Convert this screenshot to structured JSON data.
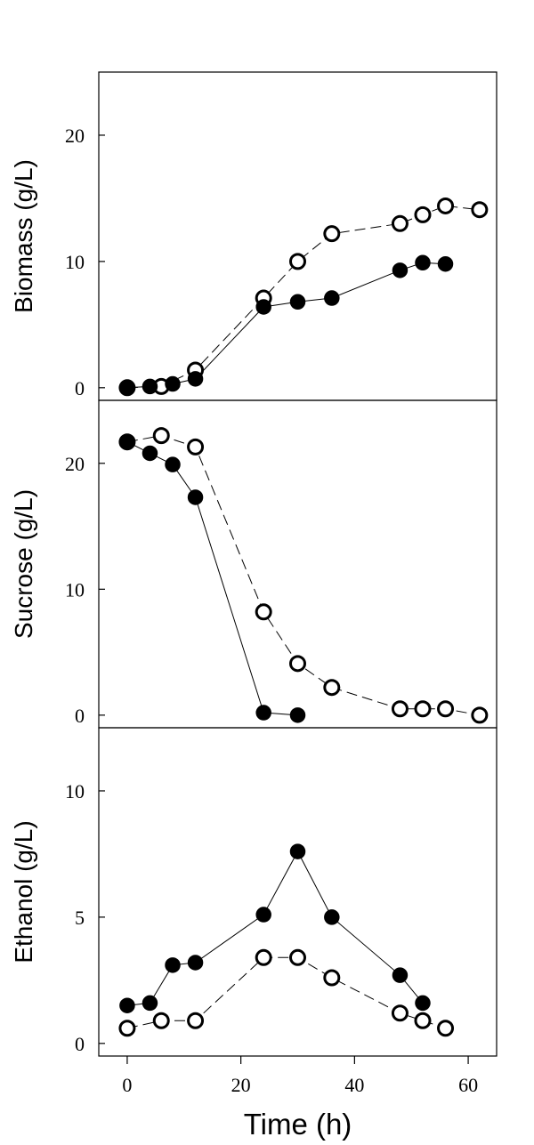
{
  "chart_data": [
    {
      "type": "line",
      "ylabel": "Biomass (g/L)",
      "ylim": [
        -1,
        25
      ],
      "yticks": [
        0,
        10,
        20
      ],
      "xlim": [
        -5,
        65
      ],
      "series": [
        {
          "marker": "filled",
          "x": [
            0,
            4,
            8,
            12,
            24,
            30,
            36,
            48,
            52,
            56
          ],
          "values": [
            0,
            0.1,
            0.3,
            0.7,
            6.4,
            6.8,
            7.1,
            9.3,
            9.9,
            9.8
          ]
        },
        {
          "marker": "open",
          "x": [
            0,
            6,
            12,
            24,
            30,
            36,
            48,
            52,
            56,
            62
          ],
          "values": [
            0,
            0.1,
            1.4,
            7.1,
            10.0,
            12.2,
            13.0,
            13.7,
            14.4,
            14.1
          ]
        }
      ]
    },
    {
      "type": "line",
      "ylabel": "Sucrose (g/L)",
      "ylim": [
        -1,
        25
      ],
      "yticks": [
        0,
        10,
        20
      ],
      "xlim": [
        -5,
        65
      ],
      "series": [
        {
          "marker": "filled",
          "x": [
            0,
            4,
            8,
            12,
            24,
            30
          ],
          "values": [
            21.7,
            20.8,
            19.9,
            17.3,
            0.2,
            0
          ]
        },
        {
          "marker": "open",
          "x": [
            0,
            6,
            12,
            24,
            30,
            36,
            48,
            52,
            56,
            62
          ],
          "values": [
            21.7,
            22.2,
            21.3,
            8.2,
            4.1,
            2.2,
            0.5,
            0.5,
            0.5,
            0
          ]
        }
      ]
    },
    {
      "type": "line",
      "ylabel": "Ethanol (g/L)",
      "xlabel": "Time (h)",
      "ylim": [
        -0.5,
        12.5
      ],
      "yticks": [
        0,
        5,
        10
      ],
      "xlim": [
        -5,
        65
      ],
      "xticks": [
        0,
        20,
        40,
        60
      ],
      "series": [
        {
          "marker": "filled",
          "x": [
            0,
            4,
            8,
            12,
            24,
            30,
            36,
            48,
            52
          ],
          "values": [
            1.5,
            1.6,
            3.1,
            3.2,
            5.1,
            7.6,
            5.0,
            2.7,
            1.6
          ]
        },
        {
          "marker": "open",
          "x": [
            0,
            6,
            12,
            24,
            30,
            36,
            48,
            52,
            56
          ],
          "values": [
            0.6,
            0.9,
            0.9,
            3.4,
            3.4,
            2.6,
            1.2,
            0.9,
            0.6
          ]
        }
      ]
    }
  ]
}
